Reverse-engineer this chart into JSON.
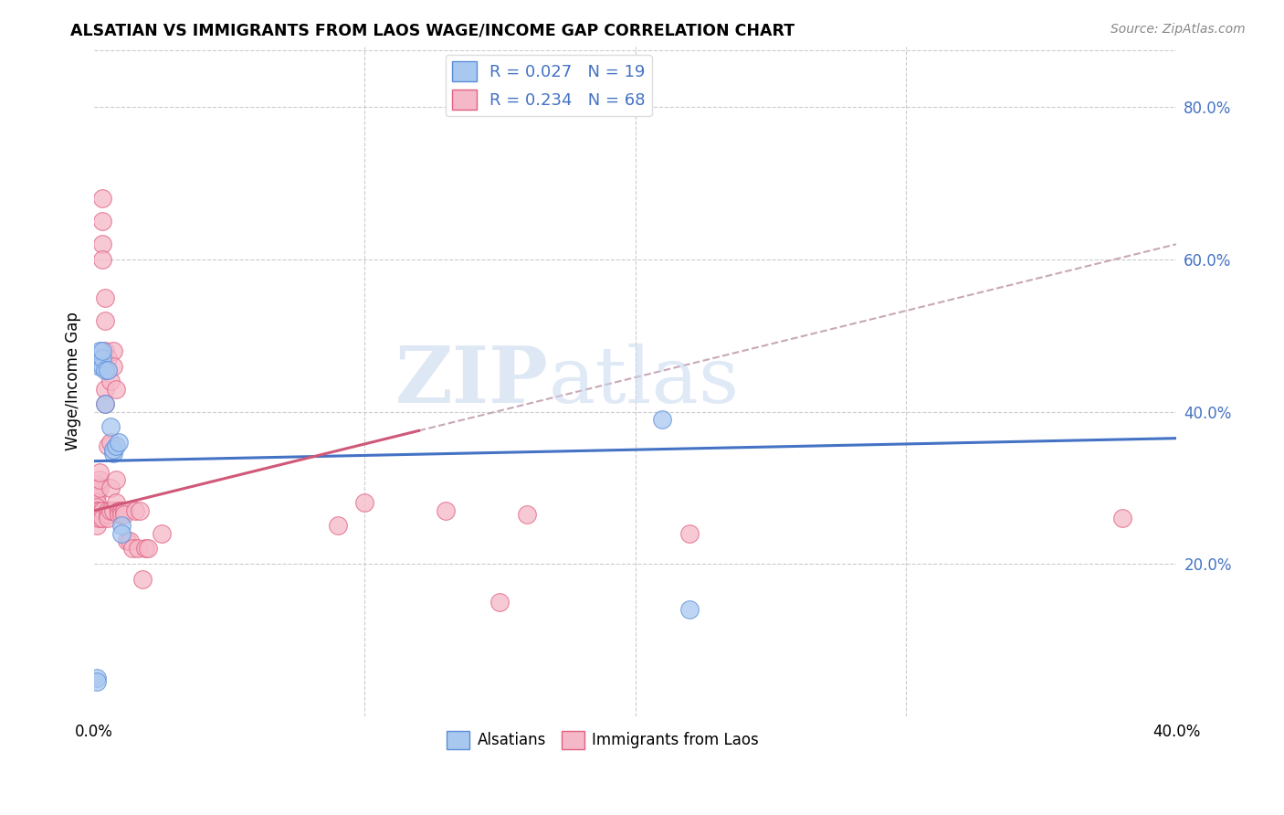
{
  "title": "ALSATIAN VS IMMIGRANTS FROM LAOS WAGE/INCOME GAP CORRELATION CHART",
  "source": "Source: ZipAtlas.com",
  "ylabel": "Wage/Income Gap",
  "legend_label1": "Alsatians",
  "legend_label2": "Immigrants from Laos",
  "r1": "0.027",
  "n1": "19",
  "r2": "0.234",
  "n2": "68",
  "watermark_zip": "ZIP",
  "watermark_atlas": "atlas",
  "color_alsatian_fill": "#a8c8f0",
  "color_alsatian_edge": "#5b8dd9",
  "color_laos_fill": "#f5b8c8",
  "color_laos_edge": "#e06080",
  "color_line_alsatian": "#4472c4",
  "color_line_laos": "#d05878",
  "color_dashed": "#c8a8b8",
  "background": "#ffffff",
  "xmin": 0.0,
  "xmax": 0.4,
  "ymin": 0.0,
  "ymax": 0.88,
  "ytick_vals": [
    0.2,
    0.4,
    0.6,
    0.8
  ],
  "xtick_vals": [
    0.0,
    0.1,
    0.2,
    0.3,
    0.4
  ],
  "alsatian_x": [
    0.001,
    0.001,
    0.002,
    0.002,
    0.003,
    0.003,
    0.003,
    0.004,
    0.004,
    0.005,
    0.006,
    0.007,
    0.007,
    0.008,
    0.009,
    0.01,
    0.01,
    0.21,
    0.22
  ],
  "alsatian_y": [
    0.05,
    0.045,
    0.48,
    0.46,
    0.46,
    0.47,
    0.48,
    0.455,
    0.41,
    0.455,
    0.38,
    0.345,
    0.35,
    0.355,
    0.36,
    0.25,
    0.24,
    0.39,
    0.14
  ],
  "laos_x": [
    0.001,
    0.001,
    0.001,
    0.001,
    0.001,
    0.001,
    0.001,
    0.001,
    0.001,
    0.001,
    0.001,
    0.002,
    0.002,
    0.002,
    0.002,
    0.002,
    0.002,
    0.003,
    0.003,
    0.003,
    0.003,
    0.003,
    0.003,
    0.004,
    0.004,
    0.004,
    0.004,
    0.004,
    0.005,
    0.005,
    0.005,
    0.005,
    0.005,
    0.005,
    0.006,
    0.006,
    0.006,
    0.006,
    0.007,
    0.007,
    0.007,
    0.008,
    0.008,
    0.008,
    0.009,
    0.009,
    0.009,
    0.01,
    0.01,
    0.011,
    0.011,
    0.012,
    0.013,
    0.014,
    0.015,
    0.016,
    0.017,
    0.018,
    0.019,
    0.02,
    0.025,
    0.1,
    0.13,
    0.16,
    0.38,
    0.09,
    0.15,
    0.22
  ],
  "laos_y": [
    0.3,
    0.305,
    0.3,
    0.295,
    0.29,
    0.28,
    0.275,
    0.27,
    0.265,
    0.26,
    0.25,
    0.3,
    0.31,
    0.32,
    0.27,
    0.265,
    0.26,
    0.62,
    0.65,
    0.68,
    0.6,
    0.27,
    0.26,
    0.55,
    0.52,
    0.48,
    0.43,
    0.41,
    0.47,
    0.455,
    0.355,
    0.27,
    0.265,
    0.26,
    0.44,
    0.36,
    0.3,
    0.27,
    0.48,
    0.46,
    0.27,
    0.43,
    0.31,
    0.28,
    0.27,
    0.27,
    0.265,
    0.27,
    0.265,
    0.27,
    0.265,
    0.23,
    0.23,
    0.22,
    0.27,
    0.22,
    0.27,
    0.18,
    0.22,
    0.22,
    0.24,
    0.28,
    0.27,
    0.265,
    0.26,
    0.25,
    0.15,
    0.24
  ]
}
